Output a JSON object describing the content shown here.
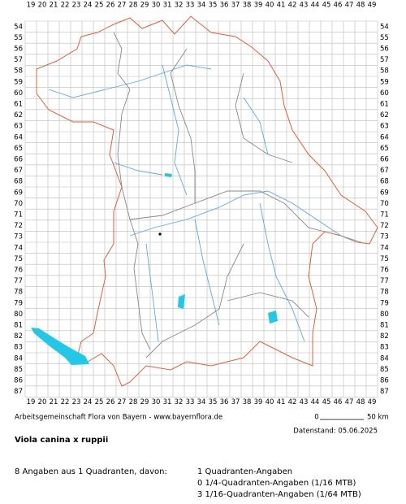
{
  "map": {
    "columns": [
      19,
      20,
      21,
      22,
      23,
      24,
      25,
      26,
      27,
      28,
      29,
      30,
      31,
      32,
      33,
      34,
      35,
      36,
      37,
      38,
      39,
      40,
      41,
      42,
      43,
      44,
      45,
      46,
      47,
      48,
      49
    ],
    "rows": [
      54,
      55,
      56,
      57,
      58,
      59,
      60,
      61,
      62,
      63,
      64,
      65,
      66,
      67,
      68,
      69,
      70,
      71,
      72,
      73,
      74,
      75,
      76,
      77,
      78,
      79,
      80,
      81,
      82,
      83,
      84,
      85,
      86,
      87
    ],
    "credit": "Arbeitsgemeinschaft Flora von Bayern - www.bayernflora.de",
    "scale_start": "0",
    "scale_end": "50 km",
    "date": "Datenstand: 05.06.2025"
  },
  "title": "Viola canina x ruppii",
  "summary": "8 Angaben aus 1 Quadranten, davon:",
  "details": [
    "1 Quadranten-Angaben",
    "0 1/4-Quadranten-Angaben (1/16 MTB)",
    "3 1/16-Quadranten-Angaben (1/64 MTB)"
  ]
}
